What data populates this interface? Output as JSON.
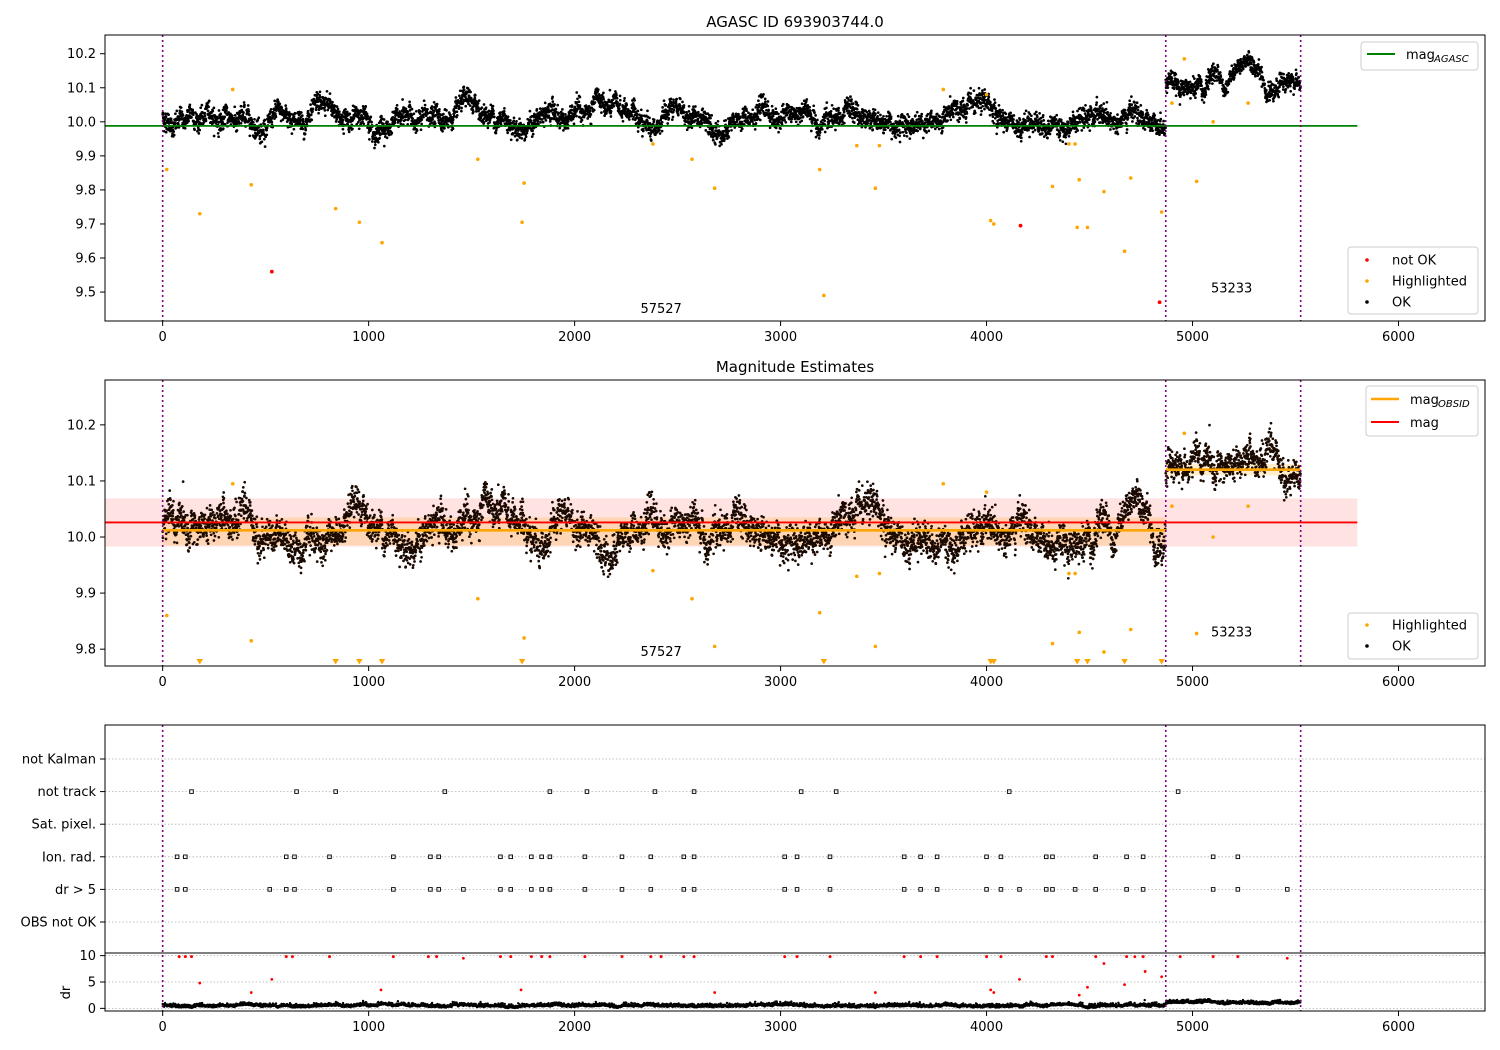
{
  "chart_data": [
    {
      "type": "scatter",
      "title": "AGASC ID 693903744.0",
      "xlim": [
        -280,
        6420
      ],
      "ylim": [
        9.415,
        10.255
      ],
      "xticks": [
        0,
        1000,
        2000,
        3000,
        4000,
        5000,
        6000
      ],
      "yticks": [
        9.5,
        9.6,
        9.7,
        9.8,
        9.9,
        10.0,
        10.1,
        10.2
      ],
      "legend_position": "top-right / lower-right",
      "legend_lines": [
        {
          "label_main": "mag",
          "label_sub": "AGASC",
          "color": "#008000"
        }
      ],
      "legend_points": [
        {
          "label": "not OK",
          "color": "#ff0000"
        },
        {
          "label": "Highlighted",
          "color": "#ffa500"
        },
        {
          "label": "OK",
          "color": "#000000"
        }
      ],
      "hline": {
        "y": 9.988,
        "x0": -280,
        "x1": 5800,
        "color": "#008000"
      },
      "vlines": [
        0,
        4870,
        5525
      ],
      "annotations": [
        {
          "text": "57527",
          "x": 2420,
          "y": 9.45
        },
        {
          "text": "53233",
          "x": 5190,
          "y": 9.51
        }
      ],
      "ok_segments": [
        {
          "x0": 0,
          "x1": 4870,
          "mean": 10.01,
          "spread": 0.025
        },
        {
          "x0": 4870,
          "x1": 5525,
          "mean": 10.118,
          "spread": 0.022
        }
      ],
      "highlighted": [
        [
          20,
          9.86
        ],
        [
          180,
          9.73
        ],
        [
          340,
          10.095
        ],
        [
          430,
          9.815
        ],
        [
          840,
          9.745
        ],
        [
          955,
          9.705
        ],
        [
          1065,
          9.645
        ],
        [
          1530,
          9.89
        ],
        [
          1745,
          9.705
        ],
        [
          1755,
          9.82
        ],
        [
          2380,
          9.935
        ],
        [
          2570,
          9.89
        ],
        [
          2680,
          9.805
        ],
        [
          3190,
          9.86
        ],
        [
          3210,
          9.49
        ],
        [
          3370,
          9.93
        ],
        [
          3460,
          9.805
        ],
        [
          3480,
          9.93
        ],
        [
          3790,
          10.095
        ],
        [
          4000,
          10.08
        ],
        [
          4020,
          9.71
        ],
        [
          4035,
          9.7
        ],
        [
          4320,
          9.81
        ],
        [
          4400,
          9.935
        ],
        [
          4430,
          9.935
        ],
        [
          4440,
          9.69
        ],
        [
          4450,
          9.83
        ],
        [
          4490,
          9.69
        ],
        [
          4570,
          9.795
        ],
        [
          4670,
          9.62
        ],
        [
          4700,
          9.835
        ],
        [
          4850,
          9.735
        ],
        [
          4900,
          10.055
        ],
        [
          4960,
          10.185
        ],
        [
          5020,
          9.825
        ],
        [
          5100,
          10.0
        ],
        [
          5270,
          10.055
        ]
      ],
      "not_ok": [
        [
          530,
          9.56
        ],
        [
          4165,
          9.695
        ],
        [
          4840,
          9.47
        ]
      ]
    },
    {
      "type": "scatter",
      "title": "Magnitude Estimates",
      "xlim": [
        -280,
        6420
      ],
      "ylim": [
        9.77,
        10.28
      ],
      "xticks": [
        0,
        1000,
        2000,
        3000,
        4000,
        5000,
        6000
      ],
      "yticks": [
        9.8,
        9.9,
        10.0,
        10.1,
        10.2
      ],
      "legend_position": "top-right / lower-right",
      "legend_lines": [
        {
          "label_main": "mag",
          "label_sub": "OBSID",
          "color": "#ffa500"
        },
        {
          "label_main": "mag",
          "label_sub": "",
          "color": "#ff0000"
        }
      ],
      "legend_points": [
        {
          "label": "Highlighted",
          "color": "#ffa500"
        },
        {
          "label": "OK",
          "color": "#000000"
        }
      ],
      "mag_line": {
        "y": 10.026,
        "x0": -280,
        "x1": 5800,
        "band": [
          9.983,
          10.069
        ],
        "color": "#ff0000"
      },
      "obsid_lines": [
        {
          "x0": 0,
          "x1": 4870,
          "y": 10.012,
          "band": [
            9.985,
            10.035
          ]
        },
        {
          "x0": 4870,
          "x1": 5525,
          "y": 10.12,
          "band": [
            10.11,
            10.13
          ]
        }
      ],
      "vlines": [
        0,
        4870,
        5525
      ],
      "annotations": [
        {
          "text": "57527",
          "x": 2420,
          "y": 9.795
        },
        {
          "text": "53233",
          "x": 5190,
          "y": 9.83
        }
      ],
      "ok_segments": [
        {
          "x0": 0,
          "x1": 4870,
          "mean": 10.01,
          "spread": 0.025
        },
        {
          "x0": 4870,
          "x1": 5525,
          "mean": 10.118,
          "spread": 0.022
        }
      ],
      "highlighted": [
        [
          20,
          9.86
        ],
        [
          340,
          10.095
        ],
        [
          430,
          9.815
        ],
        [
          1530,
          9.89
        ],
        [
          1755,
          9.82
        ],
        [
          2380,
          9.94
        ],
        [
          2570,
          9.89
        ],
        [
          2680,
          9.805
        ],
        [
          3190,
          9.865
        ],
        [
          3370,
          9.93
        ],
        [
          3460,
          9.805
        ],
        [
          3480,
          9.935
        ],
        [
          3790,
          10.095
        ],
        [
          4000,
          10.08
        ],
        [
          4320,
          9.81
        ],
        [
          4400,
          9.935
        ],
        [
          4430,
          9.935
        ],
        [
          4450,
          9.83
        ],
        [
          4570,
          9.795
        ],
        [
          4700,
          9.835
        ],
        [
          4900,
          10.055
        ],
        [
          4960,
          10.185
        ],
        [
          5020,
          9.828
        ],
        [
          5100,
          10.0
        ],
        [
          5270,
          10.055
        ]
      ],
      "clipped_low_x": [
        180,
        840,
        955,
        1065,
        1745,
        3210,
        4020,
        4035,
        4440,
        4490,
        4670,
        4850
      ]
    },
    {
      "type": "scatter",
      "title": "",
      "xlim": [
        -280,
        6420
      ],
      "xticks": [
        0,
        1000,
        2000,
        3000,
        4000,
        5000,
        6000
      ],
      "flag_categories": [
        "not Kalman",
        "not track",
        "Sat. pixel.",
        "Ion. rad.",
        "dr > 5",
        "OBS not OK"
      ],
      "flags": {
        "not Kalman": [],
        "not track": [
          140,
          650,
          840,
          1370,
          1880,
          2060,
          2390,
          2580,
          3100,
          3270,
          4110,
          4930
        ],
        "Sat. pixel.": [],
        "Ion. rad.": [
          70,
          110,
          600,
          640,
          810,
          1120,
          1300,
          1340,
          1640,
          1690,
          1790,
          1840,
          1880,
          2050,
          2230,
          2370,
          2530,
          2580,
          3020,
          3080,
          3240,
          3600,
          3680,
          3760,
          4000,
          4070,
          4290,
          4320,
          4530,
          4680,
          4760,
          5100,
          5220
        ],
        "dr > 5": [
          70,
          110,
          520,
          600,
          640,
          810,
          1120,
          1300,
          1340,
          1460,
          1640,
          1690,
          1790,
          1840,
          1880,
          2050,
          2230,
          2370,
          2530,
          2580,
          3020,
          3080,
          3240,
          3600,
          3680,
          3760,
          4000,
          4070,
          4160,
          4290,
          4320,
          4430,
          4530,
          4680,
          4760,
          5100,
          5220,
          5460
        ],
        "OBS not OK": []
      },
      "dr_panel": {
        "ylabel": "dr",
        "ylim": [
          -0.5,
          10.5
        ],
        "yticks": [
          0,
          5,
          10
        ],
        "ok_mean": 0.5,
        "ok_mean_seg2": 1.1,
        "clipped_red_x": [
          80,
          110,
          140,
          600,
          630,
          810,
          1120,
          1290,
          1330,
          1640,
          1690,
          1790,
          1840,
          1880,
          2050,
          2230,
          2370,
          2420,
          2530,
          2580,
          3020,
          3080,
          3240,
          3600,
          3680,
          3760,
          4000,
          4070,
          4290,
          4320,
          4530,
          4680,
          4760,
          4940,
          5100,
          5220
        ],
        "red_points": [
          [
            180,
            4.8
          ],
          [
            430,
            3.0
          ],
          [
            530,
            5.5
          ],
          [
            1060,
            3.5
          ],
          [
            1460,
            9.5
          ],
          [
            1740,
            3.5
          ],
          [
            2680,
            3.0
          ],
          [
            3460,
            3.0
          ],
          [
            4020,
            3.5
          ],
          [
            4035,
            3.0
          ],
          [
            4160,
            5.5
          ],
          [
            4450,
            2.5
          ],
          [
            4490,
            4.0
          ],
          [
            4570,
            8.5
          ],
          [
            4670,
            4.5
          ],
          [
            4720,
            9.8
          ],
          [
            4770,
            7.0
          ],
          [
            4850,
            6.0
          ],
          [
            5460,
            9.5
          ]
        ]
      },
      "vlines": [
        0,
        4870,
        5525
      ]
    }
  ]
}
